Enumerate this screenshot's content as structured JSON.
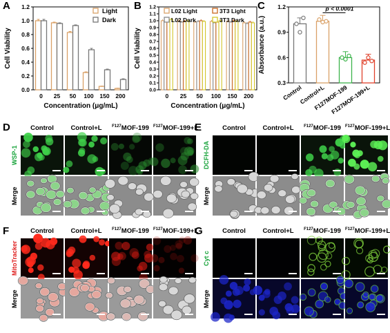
{
  "panels": {
    "A": "A",
    "B": "B",
    "C": "C",
    "D": "D",
    "E": "E",
    "F": "F",
    "G": "G"
  },
  "chart_data": [
    {
      "type": "bar",
      "panel": "A",
      "categories": [
        "0",
        "25",
        "50",
        "100",
        "150",
        "200"
      ],
      "series": [
        {
          "name": "Light",
          "color": "#d9a066",
          "values": [
            1.0,
            0.97,
            0.83,
            0.25,
            0.05,
            0.02
          ],
          "errors": [
            0.02,
            0.01,
            0.015,
            0.01,
            0.005,
            0.005
          ]
        },
        {
          "name": "Dark",
          "color": "#777777",
          "values": [
            1.0,
            0.96,
            0.93,
            0.58,
            0.29,
            0.15
          ],
          "errors": [
            0.02,
            0.01,
            0.01,
            0.02,
            0.01,
            0.01
          ]
        }
      ],
      "xlabel": "Concentration (μg/mL)",
      "ylabel": "Cell Viability",
      "ylim": [
        0,
        1.2
      ],
      "yticks": [
        "0.0",
        "0.2",
        "0.4",
        "0.6",
        "0.8",
        "1.0",
        "1.2"
      ],
      "legend": "top-right"
    },
    {
      "type": "bar",
      "panel": "B",
      "categories": [
        "0",
        "25",
        "50",
        "100",
        "150",
        "200"
      ],
      "series": [
        {
          "name": "L02 Light",
          "color": "#d9a066",
          "values": [
            1.0,
            1.0,
            0.98,
            0.99,
            0.99,
            0.97
          ]
        },
        {
          "name": "L02 Dark",
          "color": "#888888",
          "values": [
            1.0,
            0.98,
            0.99,
            0.97,
            0.98,
            0.96
          ]
        },
        {
          "name": "3T3 Light",
          "color": "#c8661e",
          "values": [
            1.01,
            0.99,
            1.0,
            0.98,
            1.0,
            0.98
          ]
        },
        {
          "name": "3T3 Dark",
          "color": "#d2c62a",
          "values": [
            1.02,
            1.0,
            0.99,
            1.0,
            0.99,
            0.97
          ]
        }
      ],
      "xlabel": "Concentration (μg/mL)",
      "ylabel": "Cell Viability",
      "ylim": [
        0,
        1.2
      ],
      "yticks": [
        "0.0",
        "0.1",
        "0.2",
        "0.3",
        "0.4",
        "0.5",
        "0.6",
        "0.7",
        "0.8",
        "0.9",
        "1.0",
        "1.1",
        "1.2"
      ],
      "legend": "top"
    },
    {
      "type": "bar",
      "panel": "C",
      "categories": [
        "Control",
        "Control+L",
        "F127MOF-199",
        "F127MOF-199+L"
      ],
      "values": [
        1.0,
        1.03,
        0.6,
        0.57
      ],
      "colors": [
        "#777777",
        "#d9a066",
        "#3bb34a",
        "#e0402a"
      ],
      "points": [
        [
          1.0,
          0.9,
          1.07
        ],
        [
          1.05,
          1.02,
          1.03
        ],
        [
          0.6,
          0.58,
          0.62
        ],
        [
          0.54,
          0.6,
          0.56
        ]
      ],
      "ylabel": "Absorbance (a.u.)",
      "ylim": [
        0.3,
        1.2
      ],
      "yticks": [
        "0.3",
        "0.6",
        "0.9",
        "1.2"
      ],
      "annotation": "p < 0.0001"
    }
  ],
  "microscopy": {
    "D": {
      "cols": [
        "Control",
        "Control+L",
        "MOF-199",
        "MOF-199+L"
      ],
      "rows": [
        "WSP-1",
        "Merge"
      ],
      "row_colors": [
        "#17a33a",
        "#000000"
      ]
    },
    "E": {
      "cols": [
        "Control",
        "Control+L",
        "MOF-199",
        "MOF-199+L"
      ],
      "rows": [
        "DCFH-DA",
        "Merge"
      ],
      "row_colors": [
        "#17a33a",
        "#000000"
      ]
    },
    "F": {
      "cols": [
        "Control",
        "Control+L",
        "MOF-199",
        "MOF-199+L"
      ],
      "rows": [
        "MitoTracker",
        "Merge"
      ],
      "row_colors": [
        "#e02020",
        "#000000"
      ]
    },
    "G": {
      "cols": [
        "Control",
        "Control+L",
        "MOF-199",
        "MOF-199+L"
      ],
      "rows": [
        "Cyt c",
        "Merge"
      ],
      "row_colors": [
        "#17a33a",
        "#000000"
      ]
    },
    "sup": "F127"
  }
}
